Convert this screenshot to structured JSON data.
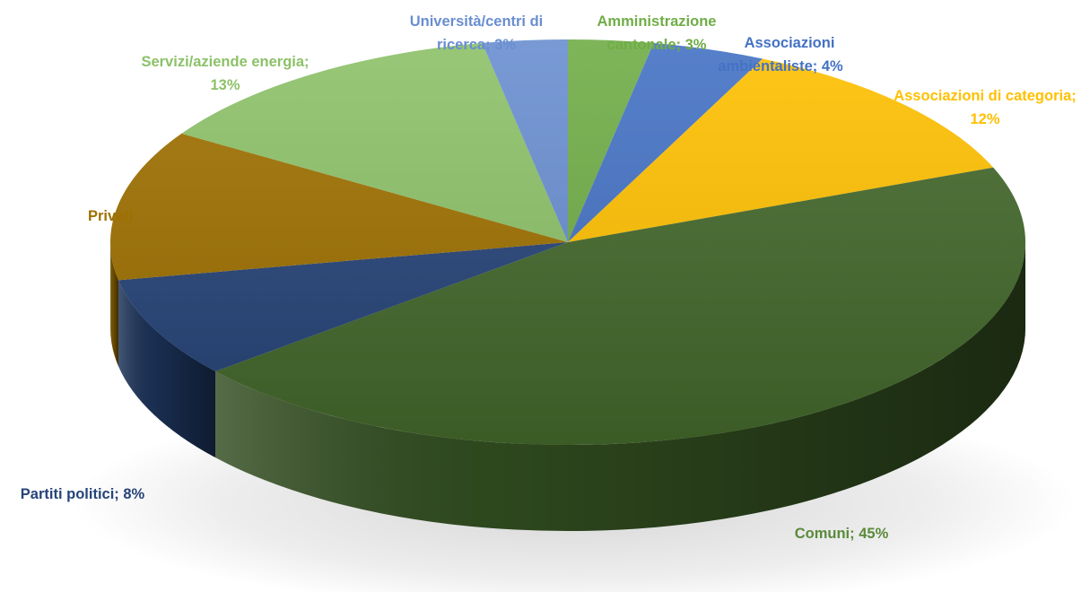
{
  "chart_data": {
    "type": "pie",
    "style": "3d",
    "title": "",
    "series": [
      {
        "slices": [
          {
            "label": "Amministrazione cantonale; 3%",
            "value": 3,
            "color": "#70AD47"
          },
          {
            "label": "Associazioni ambientaliste; 4%",
            "value": 4,
            "color": "#4472C4"
          },
          {
            "label": "Associazioni di categoria; 12%",
            "value": 12,
            "color": "#FFC000"
          },
          {
            "label": "Comuni; 45%",
            "value": 45,
            "color": "#43682B"
          },
          {
            "label": "Partiti politici; 8%",
            "value": 8,
            "color": "#264478"
          },
          {
            "label": "Privati; 12%",
            "value": 12,
            "color": "#9E7000"
          },
          {
            "label": "Servizi/aziende energia; 13%",
            "value": 13,
            "color": "#8CC168"
          },
          {
            "label": "Università/centri di ricerca; 3%",
            "value": 3,
            "color": "#698ED0"
          }
        ]
      }
    ]
  }
}
